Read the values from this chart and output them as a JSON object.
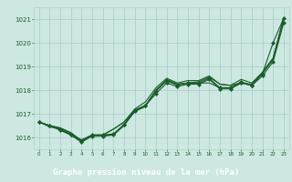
{
  "x": [
    0,
    1,
    2,
    3,
    4,
    5,
    6,
    7,
    8,
    9,
    10,
    11,
    12,
    13,
    14,
    15,
    16,
    17,
    18,
    19,
    20,
    21,
    22,
    23
  ],
  "line1": [
    1016.65,
    1016.5,
    1016.4,
    1016.2,
    1015.85,
    1016.1,
    1016.1,
    1016.35,
    1016.65,
    1017.15,
    1017.35,
    1018.0,
    1018.45,
    1018.25,
    1018.3,
    1018.35,
    1018.55,
    1018.25,
    1018.2,
    1018.3,
    1018.25,
    1018.75,
    1019.35,
    1021.05
  ],
  "line2": [
    1016.65,
    1016.5,
    1016.4,
    1016.2,
    1015.85,
    1016.1,
    1016.1,
    1016.35,
    1016.65,
    1017.2,
    1017.5,
    1018.1,
    1018.5,
    1018.3,
    1018.4,
    1018.4,
    1018.6,
    1018.25,
    1018.2,
    1018.45,
    1018.3,
    1018.75,
    1019.35,
    1021.05
  ],
  "line3_marked": [
    1016.65,
    1016.5,
    1016.35,
    1016.1,
    1015.85,
    1016.1,
    1016.1,
    1016.15,
    1016.55,
    1017.15,
    1017.35,
    1017.95,
    1018.4,
    1018.2,
    1018.3,
    1018.3,
    1018.5,
    1018.1,
    1018.1,
    1018.35,
    1018.2,
    1018.7,
    1020.0,
    1021.05
  ],
  "line4_marked": [
    1016.65,
    1016.5,
    1016.3,
    1016.1,
    1015.8,
    1016.05,
    1016.05,
    1016.1,
    1016.55,
    1017.1,
    1017.35,
    1017.85,
    1018.3,
    1018.15,
    1018.25,
    1018.25,
    1018.45,
    1018.05,
    1018.05,
    1018.3,
    1018.2,
    1018.6,
    1019.2,
    1020.85
  ],
  "line5": [
    1016.65,
    1016.45,
    1016.35,
    1016.15,
    1015.9,
    1016.1,
    1016.1,
    1016.1,
    1016.5,
    1017.1,
    1017.3,
    1018.0,
    1018.4,
    1018.25,
    1018.3,
    1018.3,
    1018.3,
    1018.1,
    1018.1,
    1018.3,
    1018.2,
    1018.7,
    1019.3,
    1021.0
  ],
  "bg_color": "#cce8e0",
  "grid_color": "#aacccc",
  "line_color": "#1a5c2a",
  "label_text": "Graphe pression niveau de la mer (hPa)",
  "label_bg": "#336633",
  "label_fg": "#ffffff",
  "ylim_min": 1015.5,
  "ylim_max": 1021.5,
  "yticks": [
    1016,
    1017,
    1018,
    1019,
    1020,
    1021
  ],
  "xticks": [
    0,
    1,
    2,
    3,
    4,
    5,
    6,
    7,
    8,
    9,
    10,
    11,
    12,
    13,
    14,
    15,
    16,
    17,
    18,
    19,
    20,
    21,
    22,
    23
  ]
}
